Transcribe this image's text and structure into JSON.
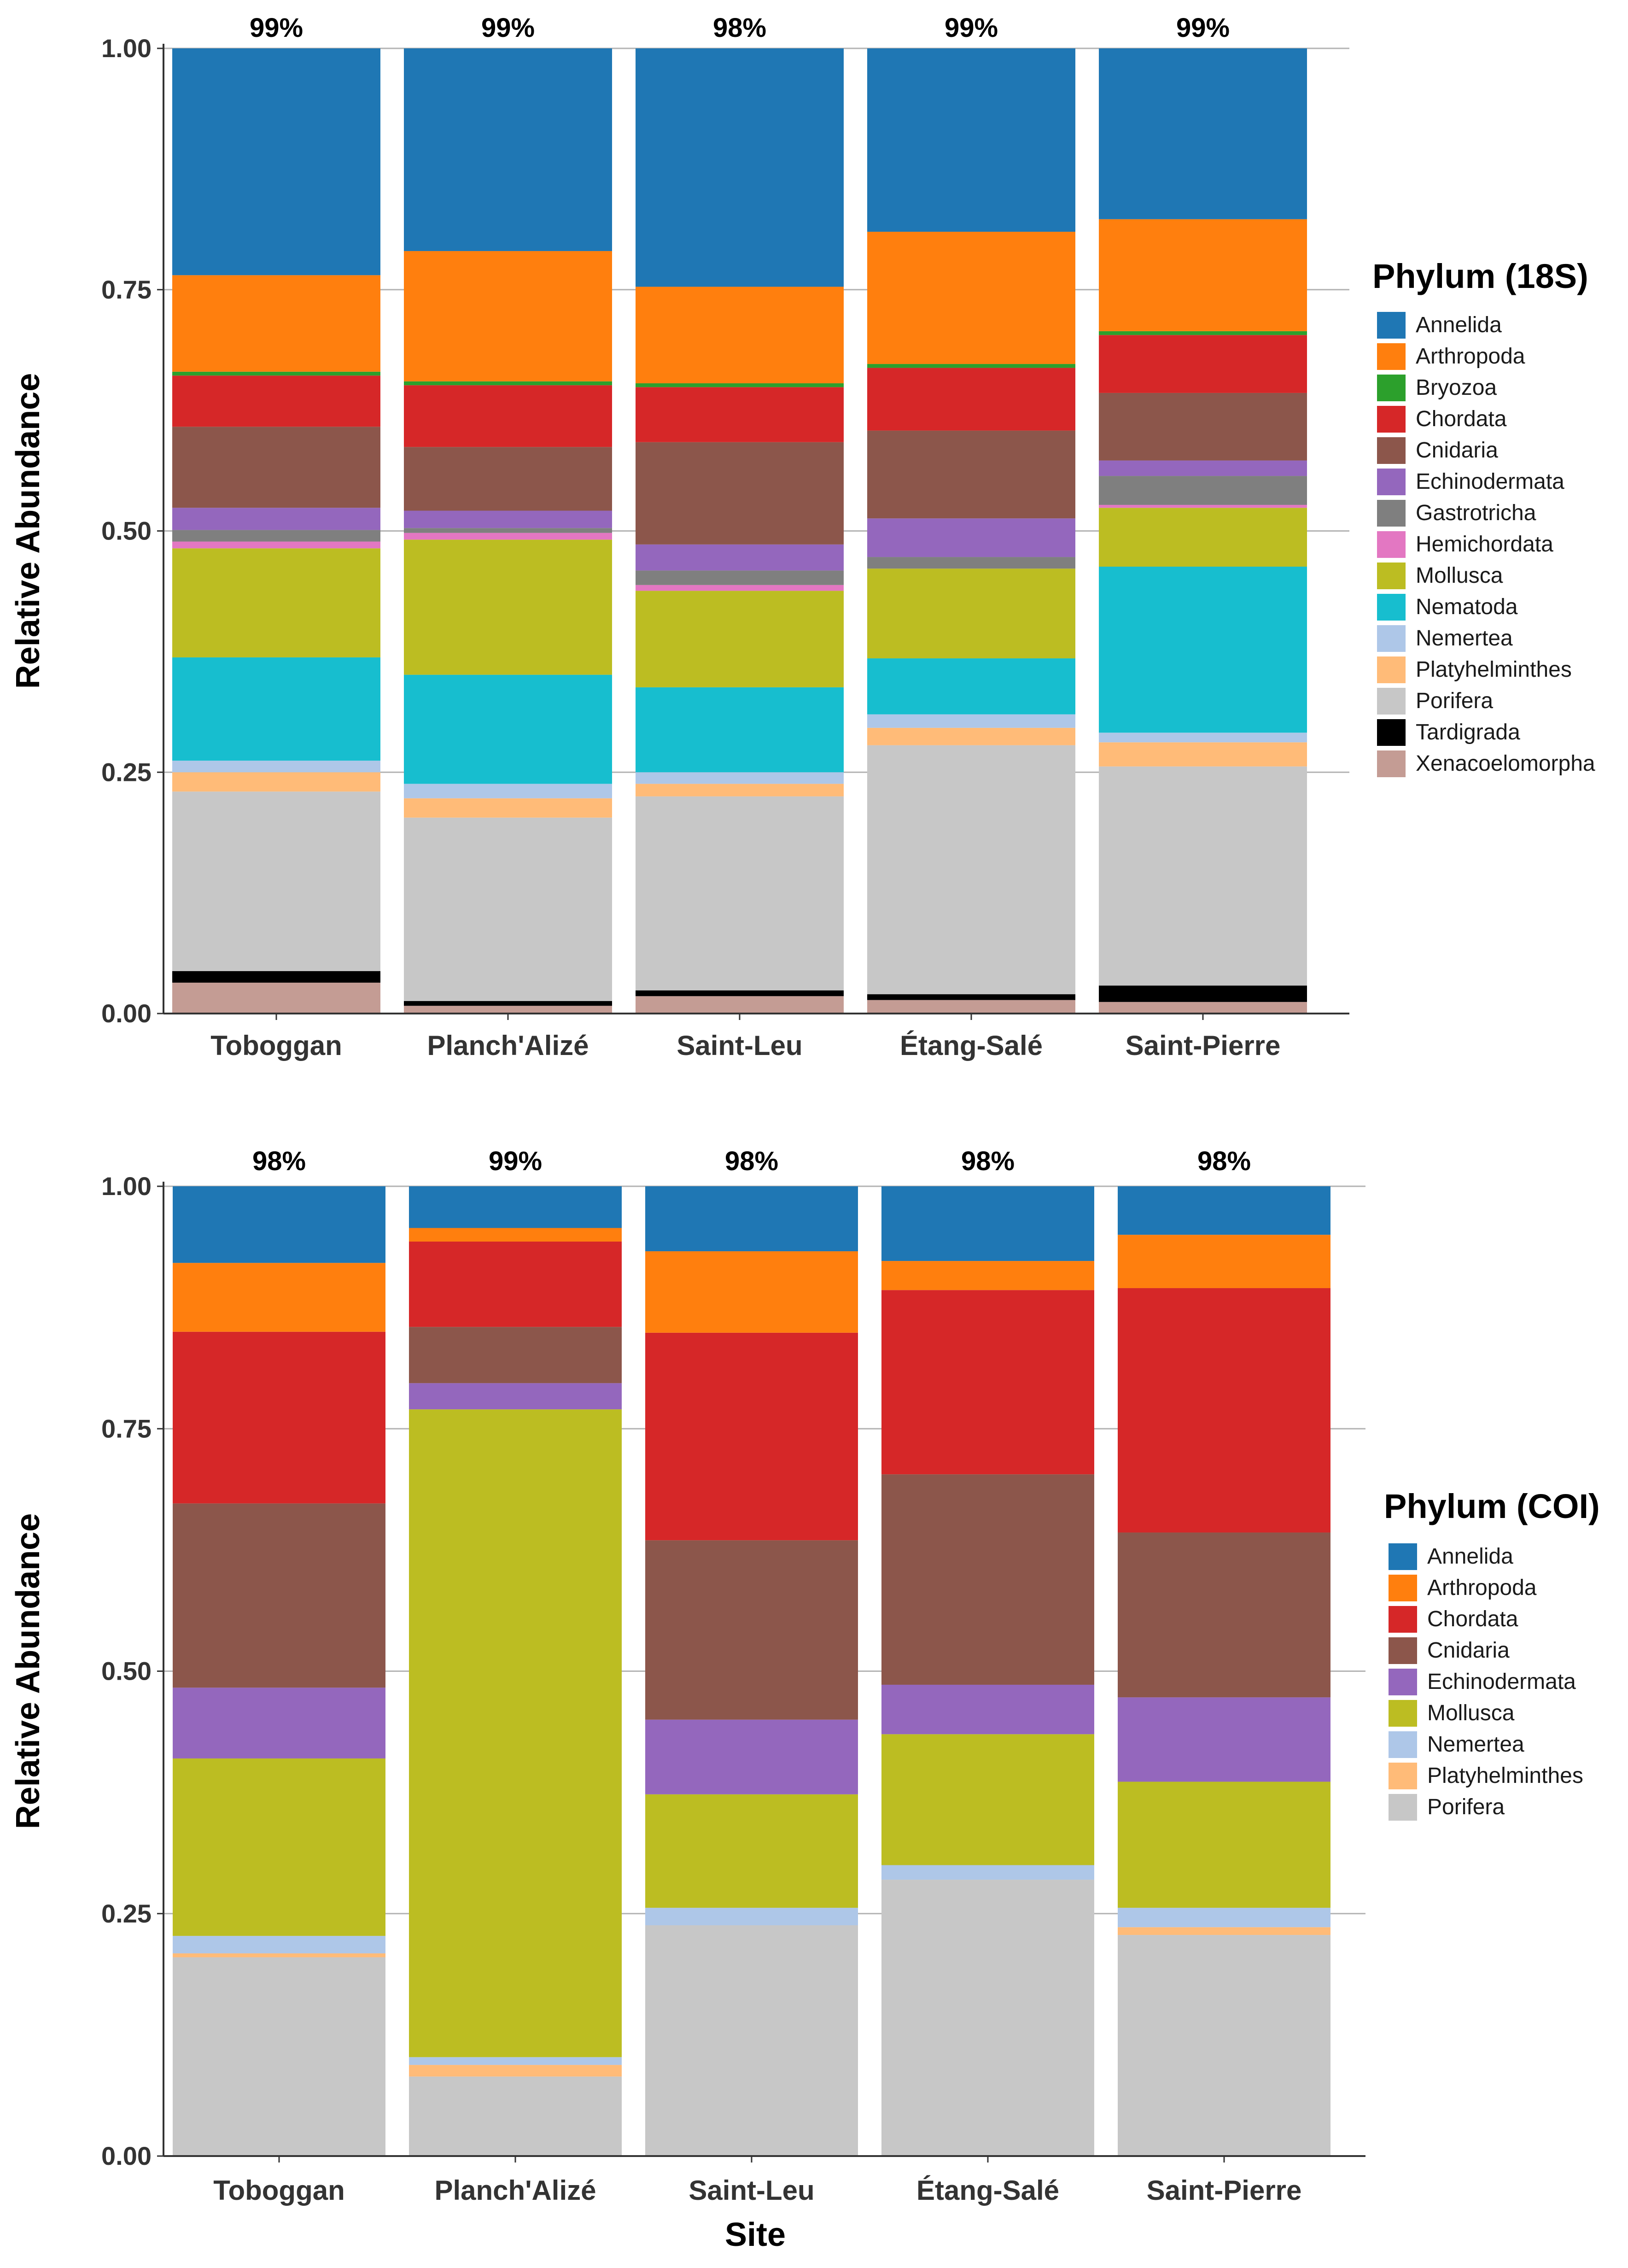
{
  "xlabel_shared": "Site",
  "chart_data": [
    {
      "type": "bar",
      "stacked": true,
      "title": "",
      "xlabel": "",
      "ylabel": "Relative Abundance",
      "ylim": [
        0,
        1
      ],
      "yticks": [
        "0.00",
        "0.25",
        "0.50",
        "0.75",
        "1.00"
      ],
      "legend_title": "Phylum (18S)",
      "categories": [
        "Toboggan",
        "Planch'Alizé",
        "Saint-Leu",
        "Étang-Salé",
        "Saint-Pierre"
      ],
      "top_labels": [
        "99%",
        "99%",
        "98%",
        "99%",
        "99%"
      ],
      "series": [
        {
          "name": "Xenacoelomorpha",
          "color": "#c49c94",
          "values": [
            0.032,
            0.008,
            0.018,
            0.014,
            0.012
          ]
        },
        {
          "name": "Tardigrada",
          "color": "#000000",
          "values": [
            0.012,
            0.005,
            0.006,
            0.006,
            0.017
          ]
        },
        {
          "name": "Porifera",
          "color": "#c7c7c7",
          "values": [
            0.186,
            0.19,
            0.201,
            0.258,
            0.227
          ]
        },
        {
          "name": "Platyhelminthes",
          "color": "#ffbb78",
          "values": [
            0.02,
            0.02,
            0.013,
            0.018,
            0.025
          ]
        },
        {
          "name": "Nemertea",
          "color": "#aec7e8",
          "values": [
            0.012,
            0.015,
            0.012,
            0.014,
            0.01
          ]
        },
        {
          "name": "Nematoda",
          "color": "#17becf",
          "values": [
            0.107,
            0.113,
            0.088,
            0.058,
            0.172
          ]
        },
        {
          "name": "Mollusca",
          "color": "#bcbd22",
          "values": [
            0.113,
            0.14,
            0.1,
            0.093,
            0.061
          ]
        },
        {
          "name": "Hemichordata",
          "color": "#e377c2",
          "values": [
            0.007,
            0.007,
            0.006,
            0.0,
            0.003
          ]
        },
        {
          "name": "Gastrotricha",
          "color": "#7f7f7f",
          "values": [
            0.012,
            0.005,
            0.015,
            0.012,
            0.03
          ]
        },
        {
          "name": "Echinodermata",
          "color": "#9467bd",
          "values": [
            0.023,
            0.018,
            0.027,
            0.04,
            0.016
          ]
        },
        {
          "name": "Cnidaria",
          "color": "#8c564b",
          "values": [
            0.084,
            0.066,
            0.106,
            0.091,
            0.07
          ]
        },
        {
          "name": "Chordata",
          "color": "#d62728",
          "values": [
            0.053,
            0.064,
            0.057,
            0.065,
            0.06
          ]
        },
        {
          "name": "Bryozoa",
          "color": "#2ca02c",
          "values": [
            0.004,
            0.004,
            0.004,
            0.004,
            0.004
          ]
        },
        {
          "name": "Arthropoda",
          "color": "#ff7f0e",
          "values": [
            0.1,
            0.135,
            0.1,
            0.137,
            0.116
          ]
        },
        {
          "name": "Annelida",
          "color": "#1f77b4",
          "values": [
            0.235,
            0.21,
            0.247,
            0.19,
            0.177
          ]
        }
      ],
      "legend_order": [
        "Annelida",
        "Arthropoda",
        "Bryozoa",
        "Chordata",
        "Cnidaria",
        "Echinodermata",
        "Gastrotricha",
        "Hemichordata",
        "Mollusca",
        "Nematoda",
        "Nemertea",
        "Platyhelminthes",
        "Porifera",
        "Tardigrada",
        "Xenacoelomorpha"
      ],
      "legend_placement": "right"
    },
    {
      "type": "bar",
      "stacked": true,
      "title": "",
      "xlabel": "Site",
      "ylabel": "Relative Abundance",
      "ylim": [
        0,
        1
      ],
      "yticks": [
        "0.00",
        "0.25",
        "0.50",
        "0.75",
        "1.00"
      ],
      "legend_title": "Phylum (COI)",
      "categories": [
        "Toboggan",
        "Planch'Alizé",
        "Saint-Leu",
        "Étang-Salé",
        "Saint-Pierre"
      ],
      "top_labels": [
        "98%",
        "99%",
        "98%",
        "98%",
        "98%"
      ],
      "series": [
        {
          "name": "Porifera",
          "color": "#c7c7c7",
          "values": [
            0.205,
            0.082,
            0.238,
            0.285,
            0.228
          ]
        },
        {
          "name": "Platyhelminthes",
          "color": "#ffbb78",
          "values": [
            0.004,
            0.012,
            0.0,
            0.0,
            0.008
          ]
        },
        {
          "name": "Nemertea",
          "color": "#aec7e8",
          "values": [
            0.018,
            0.008,
            0.018,
            0.015,
            0.02
          ]
        },
        {
          "name": "Mollusca",
          "color": "#bcbd22",
          "values": [
            0.183,
            0.668,
            0.117,
            0.135,
            0.13
          ]
        },
        {
          "name": "Echinodermata",
          "color": "#9467bd",
          "values": [
            0.073,
            0.027,
            0.077,
            0.051,
            0.087
          ]
        },
        {
          "name": "Cnidaria",
          "color": "#8c564b",
          "values": [
            0.19,
            0.058,
            0.185,
            0.217,
            0.17
          ]
        },
        {
          "name": "Chordata",
          "color": "#d62728",
          "values": [
            0.177,
            0.088,
            0.214,
            0.19,
            0.252
          ]
        },
        {
          "name": "Arthropoda",
          "color": "#ff7f0e",
          "values": [
            0.071,
            0.014,
            0.084,
            0.03,
            0.055
          ]
        },
        {
          "name": "Annelida",
          "color": "#1f77b4",
          "values": [
            0.079,
            0.043,
            0.067,
            0.077,
            0.05
          ]
        }
      ],
      "legend_order": [
        "Annelida",
        "Arthropoda",
        "Chordata",
        "Cnidaria",
        "Echinodermata",
        "Mollusca",
        "Nemertea",
        "Platyhelminthes",
        "Porifera"
      ],
      "legend_placement": "right"
    }
  ]
}
